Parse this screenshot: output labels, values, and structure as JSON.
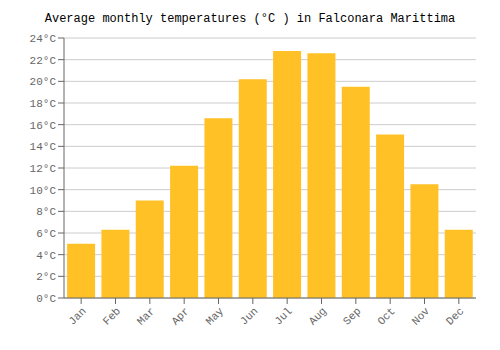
{
  "chart_data": {
    "type": "bar",
    "title": "Average monthly temperatures (°C ) in Falconara Marittima",
    "categories": [
      "Jan",
      "Feb",
      "Mar",
      "Apr",
      "May",
      "Jun",
      "Jul",
      "Aug",
      "Sep",
      "Oct",
      "Nov",
      "Dec"
    ],
    "values": [
      5.0,
      6.3,
      9.0,
      12.2,
      16.6,
      20.2,
      22.8,
      22.6,
      19.5,
      15.1,
      10.5,
      6.3
    ],
    "color": "#FFC125",
    "ylim": [
      0,
      24
    ],
    "yticks": [
      {
        "value": 0,
        "label": "0°C"
      },
      {
        "value": 2,
        "label": "2°C"
      },
      {
        "value": 4,
        "label": "4°C"
      },
      {
        "value": 6,
        "label": "6°C"
      },
      {
        "value": 8,
        "label": "8°C"
      },
      {
        "value": 10,
        "label": "10°C"
      },
      {
        "value": 12,
        "label": "12°C"
      },
      {
        "value": 14,
        "label": "14°C"
      },
      {
        "value": 16,
        "label": "16°C"
      },
      {
        "value": 18,
        "label": "18°C"
      },
      {
        "value": 20,
        "label": "20°C"
      },
      {
        "value": 22,
        "label": "22°C"
      },
      {
        "value": 24,
        "label": "24°C"
      }
    ],
    "grid": true
  }
}
